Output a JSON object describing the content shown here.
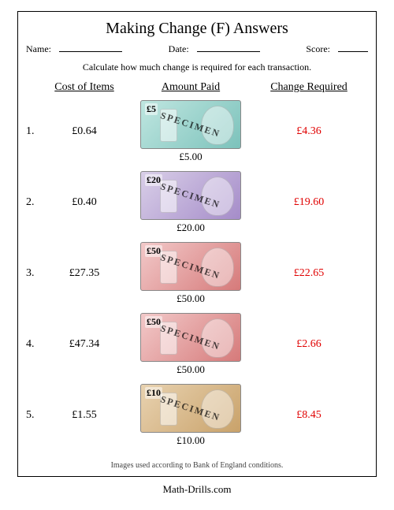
{
  "title": "Making Change (F) Answers",
  "meta": {
    "name_label": "Name:",
    "date_label": "Date:",
    "score_label": "Score:"
  },
  "instructions": "Calculate how much change is required for each transaction.",
  "headers": {
    "cost": "Cost of Items",
    "paid": "Amount Paid",
    "change": "Change Required"
  },
  "currency": "£",
  "notes": {
    "5": {
      "c1": "#bfe6e0",
      "c2": "#7cc2bb",
      "denom_text": "£5"
    },
    "10": {
      "c1": "#e8d2b0",
      "c2": "#c9a26a",
      "denom_text": "£10"
    },
    "20": {
      "c1": "#d9cfe8",
      "c2": "#a58cc9",
      "denom_text": "£20"
    },
    "50": {
      "c1": "#f2c9c9",
      "c2": "#d67a7a",
      "denom_text": "£50"
    }
  },
  "rows": [
    {
      "n": "1.",
      "cost": "£0.64",
      "note": "5",
      "paid": "£5.00",
      "change": "£4.36"
    },
    {
      "n": "2.",
      "cost": "£0.40",
      "note": "20",
      "paid": "£20.00",
      "change": "£19.60"
    },
    {
      "n": "3.",
      "cost": "£27.35",
      "note": "50",
      "paid": "£50.00",
      "change": "£22.65"
    },
    {
      "n": "4.",
      "cost": "£47.34",
      "note": "50",
      "paid": "£50.00",
      "change": "£2.66"
    },
    {
      "n": "5.",
      "cost": "£1.55",
      "note": "10",
      "paid": "£10.00",
      "change": "£8.45"
    }
  ],
  "specimen_text": "SPECIMEN",
  "attribution": "Images used according to Bank of England conditions.",
  "footer": "Math-Drills.com",
  "colors": {
    "answer": "#e00000",
    "text": "#000000",
    "bg": "#ffffff"
  }
}
